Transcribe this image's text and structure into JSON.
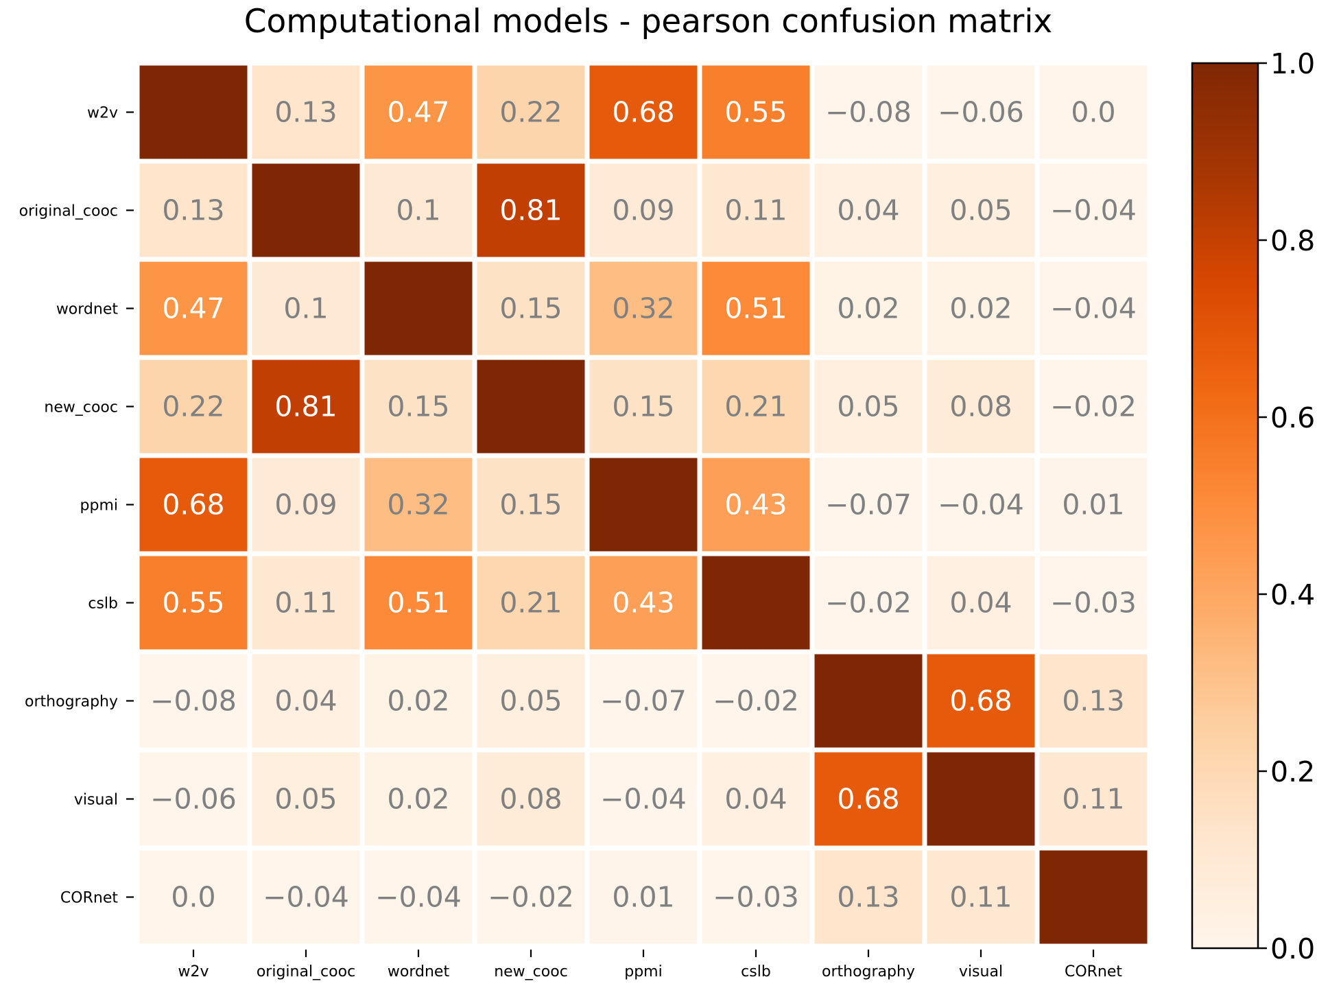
{
  "chart_data": {
    "type": "heatmap",
    "title": "Computational models - pearson confusion matrix",
    "labels": [
      "w2v",
      "original_cooc",
      "wordnet",
      "new_cooc",
      "ppmi",
      "cslb",
      "orthography",
      "visual",
      "CORnet"
    ],
    "matrix": [
      [
        1.0,
        0.13,
        0.47,
        0.22,
        0.68,
        0.55,
        -0.08,
        -0.06,
        0.0
      ],
      [
        0.13,
        1.0,
        0.1,
        0.81,
        0.09,
        0.11,
        0.04,
        0.05,
        -0.04
      ],
      [
        0.47,
        0.1,
        1.0,
        0.15,
        0.32,
        0.51,
        0.02,
        0.02,
        -0.04
      ],
      [
        0.22,
        0.81,
        0.15,
        1.0,
        0.15,
        0.21,
        0.05,
        0.08,
        -0.02
      ],
      [
        0.68,
        0.09,
        0.32,
        0.15,
        1.0,
        0.43,
        -0.07,
        -0.04,
        0.01
      ],
      [
        0.55,
        0.11,
        0.51,
        0.21,
        0.43,
        1.0,
        -0.02,
        0.04,
        -0.03
      ],
      [
        -0.08,
        0.04,
        0.02,
        0.05,
        -0.07,
        -0.02,
        1.0,
        0.68,
        0.13
      ],
      [
        -0.06,
        0.05,
        0.02,
        0.08,
        -0.04,
        0.04,
        0.68,
        1.0,
        0.11
      ],
      [
        0.0,
        -0.04,
        -0.04,
        -0.02,
        0.01,
        -0.03,
        0.13,
        0.11,
        1.0
      ]
    ],
    "cell_text": [
      [
        "",
        "0.13",
        "0.47",
        "0.22",
        "0.68",
        "0.55",
        "−0.08",
        "−0.06",
        "0.0"
      ],
      [
        "0.13",
        "",
        "0.1",
        "0.81",
        "0.09",
        "0.11",
        "0.04",
        "0.05",
        "−0.04"
      ],
      [
        "0.47",
        "0.1",
        "",
        "0.15",
        "0.32",
        "0.51",
        "0.02",
        "0.02",
        "−0.04"
      ],
      [
        "0.22",
        "0.81",
        "0.15",
        "",
        "0.15",
        "0.21",
        "0.05",
        "0.08",
        "−0.02"
      ],
      [
        "0.68",
        "0.09",
        "0.32",
        "0.15",
        "",
        "0.43",
        "−0.07",
        "−0.04",
        "0.01"
      ],
      [
        "0.55",
        "0.11",
        "0.51",
        "0.21",
        "0.43",
        "",
        "−0.02",
        "0.04",
        "−0.03"
      ],
      [
        "−0.08",
        "0.04",
        "0.02",
        "0.05",
        "−0.07",
        "−0.02",
        "",
        "0.68",
        "0.13"
      ],
      [
        "−0.06",
        "0.05",
        "0.02",
        "0.08",
        "−0.04",
        "0.04",
        "0.68",
        "",
        "0.11"
      ],
      [
        "0.0",
        "−0.04",
        "−0.04",
        "−0.02",
        "0.01",
        "−0.03",
        "0.13",
        "0.11",
        ""
      ]
    ],
    "colorbar": {
      "ticks": [
        "0.0",
        "0.2",
        "0.4",
        "0.6",
        "0.8",
        "1.0"
      ],
      "tick_values": [
        0.0,
        0.2,
        0.4,
        0.6,
        0.8,
        1.0
      ],
      "range": [
        0,
        1
      ]
    },
    "colormap": "Oranges",
    "colors": {
      "stops": [
        "#fff5eb",
        "#fee6ce",
        "#fdd0a2",
        "#fdae6b",
        "#fd8d3c",
        "#f16913",
        "#d94801",
        "#a63603",
        "#7f2704"
      ],
      "text_light": "#ffffff",
      "text_dark": "#808080",
      "cell_border": "#ffffff"
    }
  }
}
